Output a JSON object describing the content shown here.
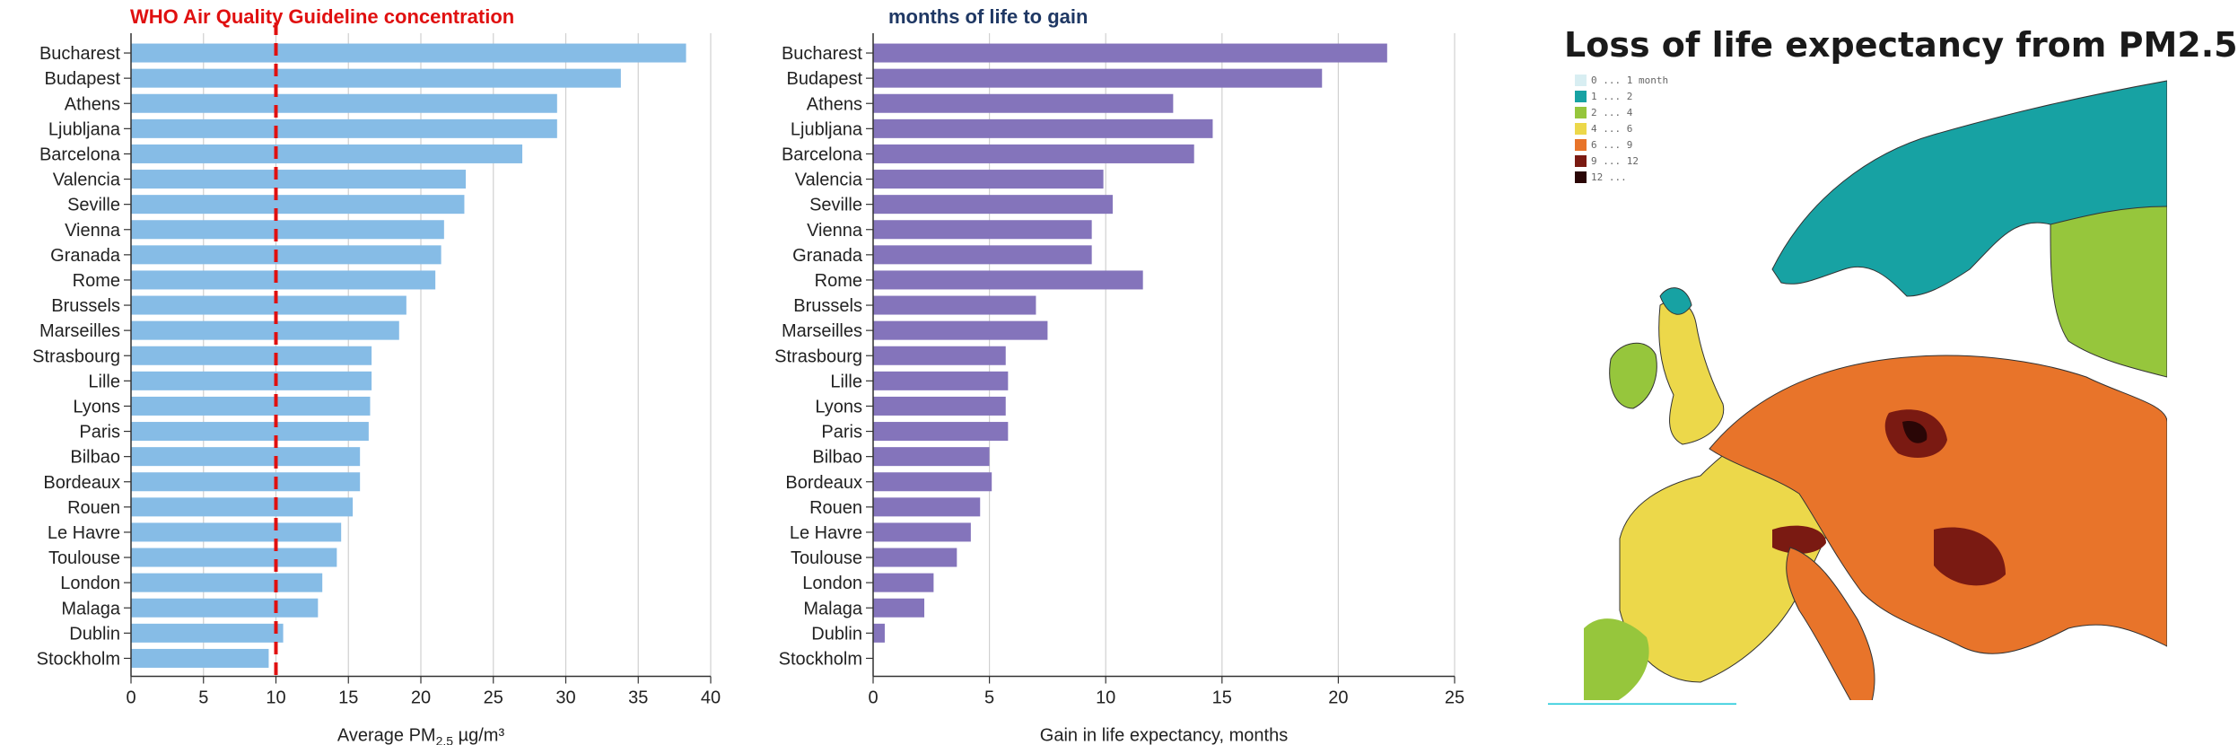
{
  "chart_data": [
    {
      "type": "bar",
      "orientation": "horizontal",
      "annotation": "WHO Air Quality Guideline concentration",
      "annotation_color": "#e01010",
      "reference_line": 10,
      "xlabel": "Average PM2.5 µg/m³",
      "xlabel_parts": {
        "pre": "Average PM",
        "sub": "2.5",
        "post": " µg/m³"
      },
      "xlim": [
        0,
        40
      ],
      "xticks": [
        0,
        5,
        10,
        15,
        20,
        25,
        30,
        35,
        40
      ],
      "grid": true,
      "bar_color": "#86bce6",
      "categories": [
        "Bucharest",
        "Budapest",
        "Athens",
        "Ljubljana",
        "Barcelona",
        "Valencia",
        "Seville",
        "Vienna",
        "Granada",
        "Rome",
        "Brussels",
        "Marseilles",
        "Strasbourg",
        "Lille",
        "Lyons",
        "Paris",
        "Bilbao",
        "Bordeaux",
        "Rouen",
        "Le Havre",
        "Toulouse",
        "London",
        "Malaga",
        "Dublin",
        "Stockholm"
      ],
      "values": [
        38.3,
        33.8,
        29.4,
        29.4,
        27.0,
        23.1,
        23.0,
        21.6,
        21.4,
        21.0,
        19.0,
        18.5,
        16.6,
        16.6,
        16.5,
        16.4,
        15.8,
        15.8,
        15.3,
        14.5,
        14.2,
        13.2,
        12.9,
        10.5,
        9.5
      ]
    },
    {
      "type": "bar",
      "orientation": "horizontal",
      "annotation": "months of life to gain",
      "annotation_color": "#1f3864",
      "xlabel": "Gain in life expectancy, months",
      "xlim": [
        0,
        25
      ],
      "xticks": [
        0,
        5,
        10,
        15,
        20,
        25
      ],
      "grid": true,
      "bar_color": "#8474bb",
      "categories": [
        "Bucharest",
        "Budapest",
        "Athens",
        "Ljubljana",
        "Barcelona",
        "Valencia",
        "Seville",
        "Vienna",
        "Granada",
        "Rome",
        "Brussels",
        "Marseilles",
        "Strasbourg",
        "Lille",
        "Lyons",
        "Paris",
        "Bilbao",
        "Bordeaux",
        "Rouen",
        "Le Havre",
        "Toulouse",
        "London",
        "Malaga",
        "Dublin",
        "Stockholm"
      ],
      "values": [
        22.1,
        19.3,
        12.9,
        14.6,
        13.8,
        9.9,
        10.3,
        9.4,
        9.4,
        11.6,
        7.0,
        7.5,
        5.7,
        5.8,
        5.7,
        5.8,
        5.0,
        5.1,
        4.6,
        4.2,
        3.6,
        2.6,
        2.2,
        0.5,
        0
      ]
    }
  ],
  "map": {
    "title": "Loss of life expectancy from PM2.5",
    "legend": [
      {
        "label": "0 ... 1 month",
        "color": "#d8eef2"
      },
      {
        "label": "1 ... 2",
        "color": "#17a2a3"
      },
      {
        "label": "2 ... 4",
        "color": "#96c63c"
      },
      {
        "label": "4 ... 6",
        "color": "#ecd84a"
      },
      {
        "label": "6 ... 9",
        "color": "#e8742a"
      },
      {
        "label": "9 ... 12",
        "color": "#7a1a12"
      },
      {
        "label": "12 ...",
        "color": "#2a0606"
      }
    ]
  }
}
